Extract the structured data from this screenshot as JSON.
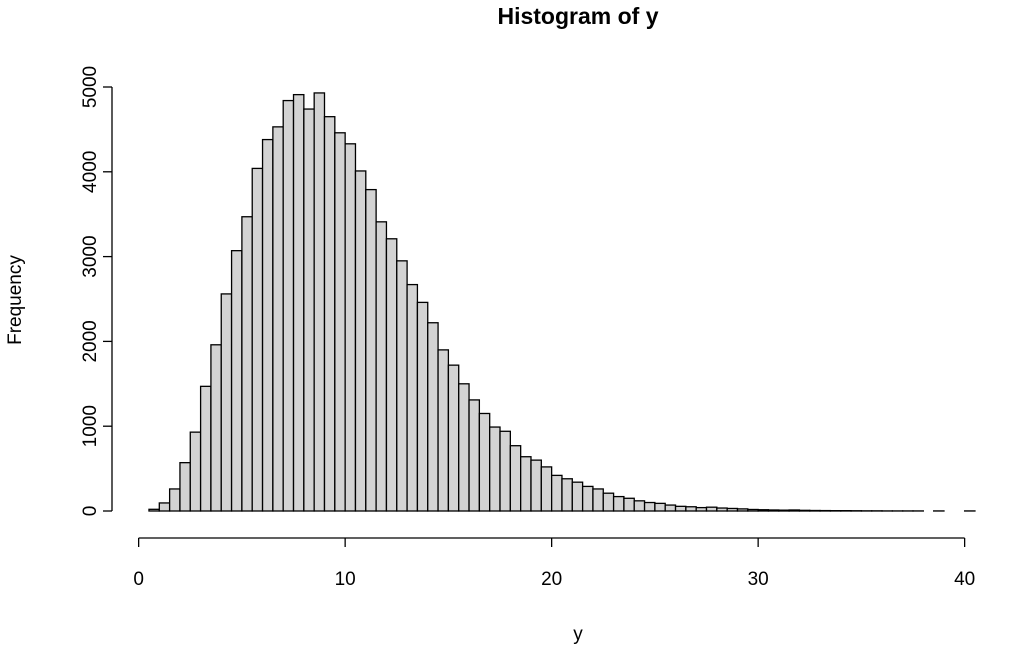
{
  "chart_data": {
    "type": "histogram",
    "title": "Histogram of y",
    "x_label": "y",
    "y_label": "Frequency",
    "bins": [
      0.5,
      1,
      1.5,
      2,
      2.5,
      3,
      3.5,
      4,
      4.5,
      5,
      5.5,
      6,
      6.5,
      7,
      7.5,
      8,
      8.5,
      9,
      9.5,
      10,
      10.5,
      11,
      11.5,
      12,
      12.5,
      13,
      13.5,
      14,
      14.5,
      15,
      15.5,
      16,
      16.5,
      17,
      17.5,
      18,
      18.5,
      19,
      19.5,
      20,
      20.5,
      21,
      21.5,
      22,
      22.5,
      23,
      23.5,
      24,
      24.5,
      25,
      25.5,
      26,
      26.5,
      27,
      27.5,
      28,
      28.5,
      29,
      29.5,
      30,
      30.5,
      31,
      31.5,
      32,
      32.5,
      33,
      33.5,
      34,
      34.5,
      35,
      35.5,
      36,
      36.5,
      37,
      37.5,
      38,
      38.5,
      39,
      39.5,
      40,
      40.5,
      41,
      41.5,
      42
    ],
    "values": [
      20,
      95,
      260,
      570,
      930,
      1470,
      1960,
      2560,
      3070,
      3470,
      4040,
      4380,
      4530,
      4840,
      4910,
      4740,
      4930,
      4650,
      4460,
      4330,
      4010,
      3790,
      3410,
      3210,
      2950,
      2670,
      2460,
      2220,
      1900,
      1720,
      1500,
      1310,
      1150,
      990,
      940,
      770,
      640,
      600,
      520,
      420,
      380,
      340,
      290,
      260,
      210,
      170,
      150,
      120,
      100,
      90,
      70,
      55,
      50,
      40,
      45,
      35,
      30,
      25,
      18,
      15,
      12,
      10,
      12,
      8,
      6,
      5,
      4,
      4,
      3,
      2,
      2,
      1,
      1,
      1,
      1,
      0,
      1,
      0,
      0,
      1,
      0,
      0,
      0
    ],
    "color": "#d3d3d3",
    "xlim": [
      -1,
      42.1
    ],
    "ylim": [
      0,
      5000
    ],
    "xticks": [
      0,
      10,
      20,
      30,
      40
    ],
    "yticks": [
      0,
      1000,
      2000,
      3000,
      4000,
      5000
    ]
  }
}
